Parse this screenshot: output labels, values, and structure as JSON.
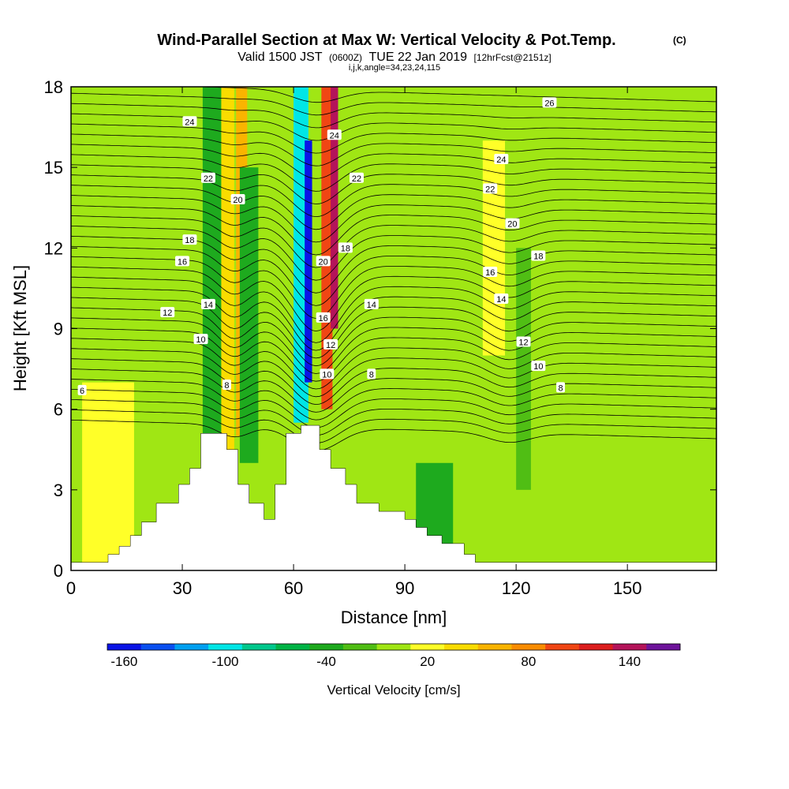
{
  "header": {
    "title": "Wind-Parallel Section at Max W: Vertical Velocity & Pot.Temp.",
    "copyright": "(C)",
    "valid_prefix": "Valid 1500 JST",
    "valid_utc": "(0600Z)",
    "valid_date": "TUE 22 Jan 2019",
    "forecast": "[12hrFcst@2151z]",
    "indices": "i,j,k,angle=34,23,24,115"
  },
  "chart_data": {
    "type": "heatmap",
    "xlabel": "Distance [nm]",
    "ylabel": "Height [Kft MSL]",
    "xlim": [
      0,
      174
    ],
    "ylim": [
      0,
      18
    ],
    "xticks": [
      0,
      30,
      60,
      90,
      120,
      150
    ],
    "yticks": [
      0,
      3,
      6,
      9,
      12,
      15,
      18
    ],
    "colorbar": {
      "label": "Vertical Velocity [cm/s]",
      "tick_values": [
        -160,
        -100,
        -40,
        20,
        80,
        140
      ],
      "levels": [
        -160,
        -140,
        -120,
        -100,
        -80,
        -60,
        -40,
        -20,
        0,
        20,
        40,
        60,
        80,
        100,
        120,
        140,
        160
      ],
      "colors": [
        "#0a14e6",
        "#0a50f0",
        "#00a0f0",
        "#00e6e6",
        "#00c88c",
        "#00b446",
        "#1eaa1e",
        "#50be14",
        "#a0e614",
        "#ffff28",
        "#fadc00",
        "#fab400",
        "#fa8c00",
        "#f04614",
        "#dc1e1e",
        "#b4145a",
        "#6e149b"
      ]
    },
    "velocity_features": [
      {
        "x": 42,
        "y_bottom": 4.5,
        "y_top": 18,
        "value": 40,
        "width": 4
      },
      {
        "x": 46,
        "y_bottom": 5,
        "y_top": 18,
        "value": 60,
        "width": 3
      },
      {
        "x": 48,
        "y_bottom": 4,
        "y_top": 15,
        "value": -40,
        "width": 5
      },
      {
        "x": 38,
        "y_bottom": 5,
        "y_top": 18,
        "value": -40,
        "width": 5
      },
      {
        "x": 62,
        "y_bottom": 5.5,
        "y_top": 18,
        "value": -100,
        "width": 4
      },
      {
        "x": 64,
        "y_bottom": 7,
        "y_top": 16,
        "value": -160,
        "width": 2
      },
      {
        "x": 69,
        "y_bottom": 6,
        "y_top": 18,
        "value": 100,
        "width": 3
      },
      {
        "x": 71,
        "y_bottom": 9,
        "y_top": 18,
        "value": 140,
        "width": 2
      },
      {
        "x": 114,
        "y_bottom": 8,
        "y_top": 16,
        "value": 20,
        "width": 6
      },
      {
        "x": 122,
        "y_bottom": 3,
        "y_top": 12,
        "value": -20,
        "width": 4
      },
      {
        "x": 98,
        "y_bottom": 0,
        "y_top": 4,
        "value": -40,
        "width": 10
      },
      {
        "x": 10,
        "y_bottom": 0,
        "y_top": 7,
        "value": 20,
        "width": 14
      }
    ],
    "terrain": [
      [
        0,
        0.3
      ],
      [
        10,
        0.3
      ],
      [
        10,
        0.6
      ],
      [
        13,
        0.6
      ],
      [
        13,
        0.9
      ],
      [
        16,
        0.9
      ],
      [
        16,
        1.3
      ],
      [
        19,
        1.3
      ],
      [
        19,
        1.8
      ],
      [
        23,
        1.8
      ],
      [
        23,
        2.5
      ],
      [
        29,
        2.5
      ],
      [
        29,
        3.2
      ],
      [
        32,
        3.2
      ],
      [
        32,
        3.8
      ],
      [
        35,
        3.8
      ],
      [
        35,
        5.1
      ],
      [
        42,
        5.1
      ],
      [
        42,
        4.5
      ],
      [
        45,
        4.5
      ],
      [
        45,
        3.2
      ],
      [
        48,
        3.2
      ],
      [
        48,
        2.5
      ],
      [
        52,
        2.5
      ],
      [
        52,
        1.9
      ],
      [
        55,
        1.9
      ],
      [
        55,
        3.2
      ],
      [
        58,
        3.2
      ],
      [
        58,
        5.1
      ],
      [
        62,
        5.1
      ],
      [
        62,
        5.4
      ],
      [
        67,
        5.4
      ],
      [
        67,
        4.5
      ],
      [
        70,
        4.5
      ],
      [
        70,
        3.8
      ],
      [
        74,
        3.8
      ],
      [
        74,
        3.2
      ],
      [
        77,
        3.2
      ],
      [
        77,
        2.5
      ],
      [
        83,
        2.5
      ],
      [
        83,
        2.2
      ],
      [
        90,
        2.2
      ],
      [
        90,
        1.9
      ],
      [
        93,
        1.9
      ],
      [
        93,
        1.6
      ],
      [
        96,
        1.6
      ],
      [
        96,
        1.3
      ],
      [
        100,
        1.3
      ],
      [
        100,
        1.0
      ],
      [
        106,
        1.0
      ],
      [
        106,
        0.6
      ],
      [
        109,
        0.6
      ],
      [
        109,
        0.3
      ],
      [
        174,
        0.3
      ],
      [
        174,
        0
      ],
      [
        0,
        0
      ]
    ],
    "theta_labels": [
      {
        "text": "6",
        "x": 3,
        "y": 6.7
      },
      {
        "text": "8",
        "x": 42,
        "y": 6.9
      },
      {
        "text": "10",
        "x": 35,
        "y": 8.6
      },
      {
        "text": "12",
        "x": 26,
        "y": 9.6
      },
      {
        "text": "14",
        "x": 37,
        "y": 9.9
      },
      {
        "text": "16",
        "x": 30,
        "y": 11.5
      },
      {
        "text": "18",
        "x": 32,
        "y": 12.3
      },
      {
        "text": "20",
        "x": 45,
        "y": 13.8
      },
      {
        "text": "22",
        "x": 37,
        "y": 14.6
      },
      {
        "text": "24",
        "x": 32,
        "y": 16.7
      },
      {
        "text": "20",
        "x": 68,
        "y": 11.5
      },
      {
        "text": "18",
        "x": 74,
        "y": 12
      },
      {
        "text": "16",
        "x": 68,
        "y": 9.4
      },
      {
        "text": "12",
        "x": 70,
        "y": 8.4
      },
      {
        "text": "10",
        "x": 69,
        "y": 7.3
      },
      {
        "text": "24",
        "x": 71,
        "y": 16.2
      },
      {
        "text": "22",
        "x": 77,
        "y": 14.6
      },
      {
        "text": "14",
        "x": 81,
        "y": 9.9
      },
      {
        "text": "8",
        "x": 81,
        "y": 7.3
      },
      {
        "text": "26",
        "x": 129,
        "y": 17.4
      },
      {
        "text": "24",
        "x": 116,
        "y": 15.3
      },
      {
        "text": "22",
        "x": 113,
        "y": 14.2
      },
      {
        "text": "20",
        "x": 119,
        "y": 12.9
      },
      {
        "text": "18",
        "x": 126,
        "y": 11.7
      },
      {
        "text": "16",
        "x": 113,
        "y": 11.1
      },
      {
        "text": "14",
        "x": 116,
        "y": 10.1
      },
      {
        "text": "12",
        "x": 122,
        "y": 8.5
      },
      {
        "text": "10",
        "x": 126,
        "y": 7.6
      },
      {
        "text": "8",
        "x": 132,
        "y": 6.8
      }
    ]
  }
}
